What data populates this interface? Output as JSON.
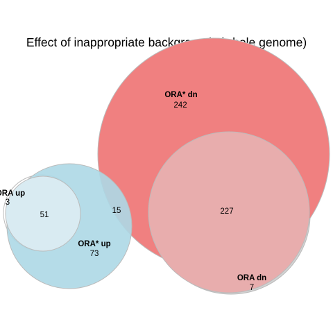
{
  "title": "Effect of inappropriate background* (whole genome)",
  "sets": [
    {
      "name": "ORA up",
      "only_count": "3",
      "color": "#ffffff",
      "stroke": "#bbbbbb"
    },
    {
      "name": "ORA* up",
      "only_count": "73",
      "color": "#add8e6",
      "stroke": "#bbbbbb"
    },
    {
      "name": "ORA* dn",
      "only_count": "242",
      "color": "#f08080",
      "stroke": "#bbbbbb"
    },
    {
      "name": "ORA dn",
      "only_count": "7",
      "color": "#d3d3d3",
      "stroke": "#bbbbbb"
    }
  ],
  "overlaps": [
    {
      "sets": [
        "ORA up",
        "ORA* up"
      ],
      "count": "51",
      "color": "#d9ebf2"
    },
    {
      "sets": [
        "ORA* up",
        "ORA* dn"
      ],
      "count": "15"
    },
    {
      "sets": [
        "ORA* dn",
        "ORA dn"
      ],
      "count": "227",
      "color": "#e8adad"
    }
  ]
}
